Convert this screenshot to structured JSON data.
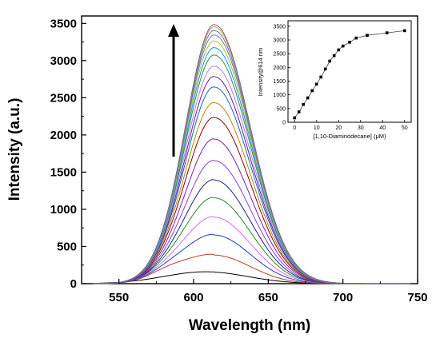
{
  "chart_data": [
    {
      "type": "line",
      "title": "",
      "xlabel": "Wavelength (nm)",
      "ylabel": "Intensity (a.u.)",
      "xlim": [
        525,
        750
      ],
      "ylim": [
        0,
        3600
      ],
      "xticks": [
        "550",
        "600",
        "650",
        "700",
        "750"
      ],
      "yticks": [
        "0",
        "500",
        "1000",
        "1500",
        "2000",
        "2500",
        "3000",
        "3500"
      ],
      "grid": false,
      "peak_wavelength_nm": 614,
      "arrow_direction": "up",
      "series_peaks": [
        160,
        380,
        650,
        890,
        1150,
        1390,
        1650,
        1940,
        2230,
        2430,
        2640,
        2780,
        2920,
        3070,
        3170,
        3260,
        3340,
        3400,
        3450,
        3480
      ],
      "series_colors": [
        "#000000",
        "#c0392b",
        "#1f3cc4",
        "#e066ff",
        "#228b22",
        "#1a237e",
        "#8b3fd9",
        "#7b1fa2",
        "#8b0000",
        "#b8860b",
        "#1565c0",
        "#6a1b9a",
        "#b57edc",
        "#2e8b57",
        "#1e90ff",
        "#9acd32",
        "#8b6fa8",
        "#4682b4",
        "#ff8c00",
        "#5b6aa8"
      ]
    },
    {
      "type": "scatter",
      "title": "",
      "xlabel": "[1,10-Diaminodecane] (μM)",
      "ylabel": "Intensity@614 nm",
      "xlim": [
        -3,
        53
      ],
      "ylim": [
        0,
        3700
      ],
      "xticks": [
        "0",
        "10",
        "20",
        "30",
        "40",
        "50"
      ],
      "yticks": [
        "0",
        "500",
        "1000",
        "1500",
        "2000",
        "2500",
        "3000",
        "3500"
      ],
      "x": [
        0,
        2,
        4,
        6,
        8,
        10,
        12,
        14,
        16,
        18,
        20,
        22,
        25,
        28,
        33,
        42,
        50
      ],
      "y": [
        160,
        380,
        650,
        890,
        1150,
        1390,
        1650,
        1940,
        2230,
        2430,
        2640,
        2780,
        2920,
        3070,
        3170,
        3260,
        3340
      ],
      "line_connected": true
    }
  ]
}
